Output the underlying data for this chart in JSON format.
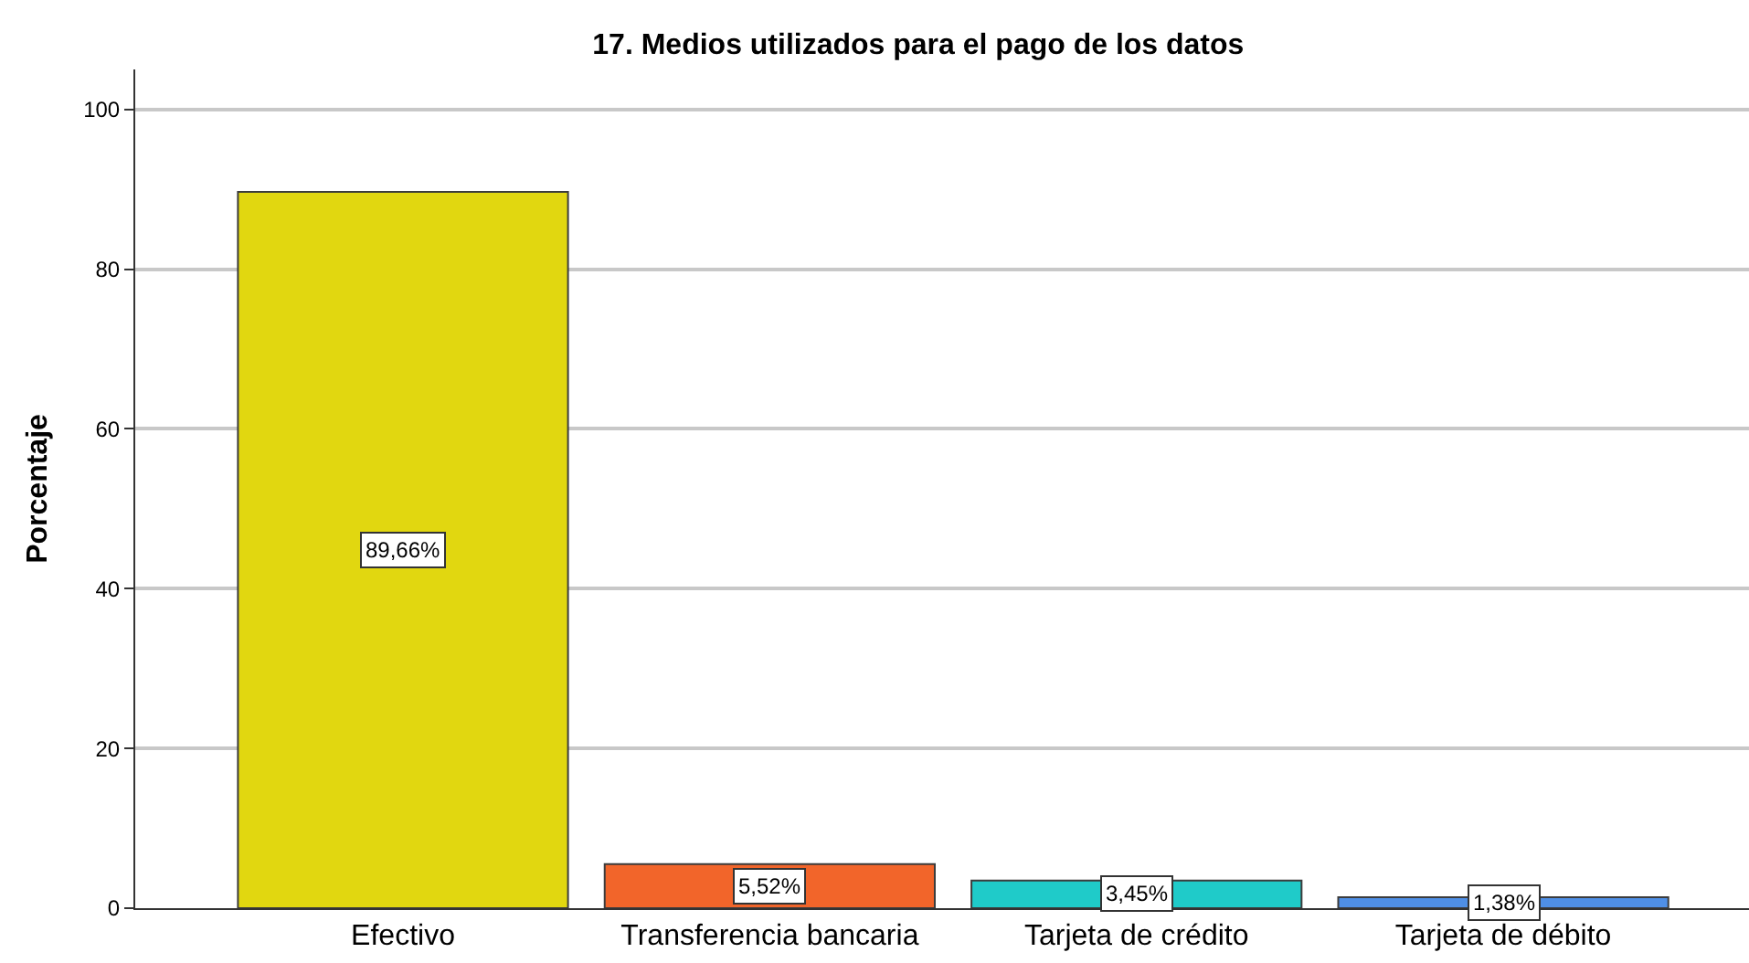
{
  "chart_data": {
    "type": "bar",
    "title": "17. Medios utilizados para el pago de los datos",
    "ylabel": "Porcentaje",
    "categories": [
      "Efectivo",
      "Transferencia bancaria",
      "Tarjeta de crédito",
      "Tarjeta de débito"
    ],
    "values": [
      89.66,
      5.52,
      3.45,
      1.38
    ],
    "colors": [
      "#e1d710",
      "#f2652a",
      "#1fcbc9",
      "#4f8fe6"
    ],
    "value_labels": [
      "89,66%",
      "5,52%",
      "3,45%",
      "1,38%"
    ],
    "ylim": [
      0,
      105
    ],
    "yticks": [
      0,
      20,
      40,
      60,
      80,
      100
    ],
    "grid": "y"
  }
}
